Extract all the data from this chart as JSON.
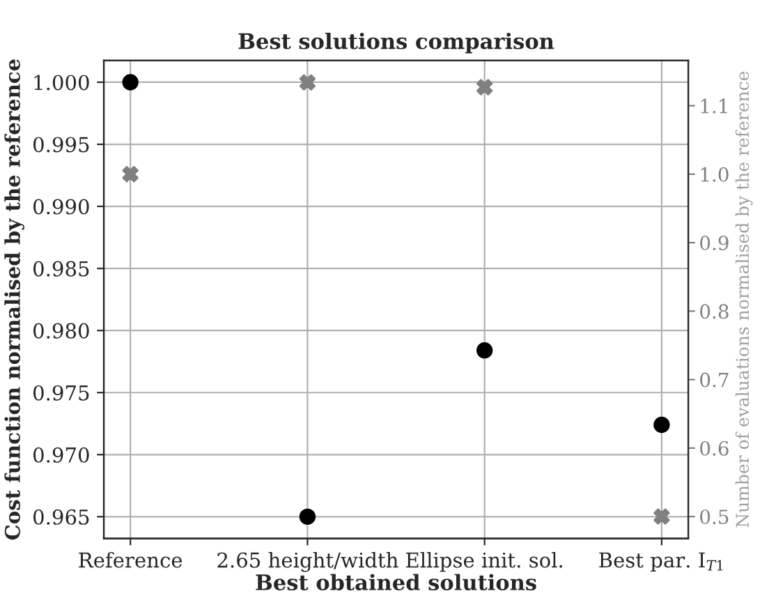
{
  "chart_data": {
    "type": "scatter",
    "title": "Best solutions comparison",
    "xlabel": "Best obtained solutions",
    "ylabel": "Cost function normalised by the reference",
    "y2label": "Number of evaluations normalised by the reference",
    "categories": [
      "Reference",
      "2.65 height/width",
      "Ellipse init. sol.",
      "Best par. I$_{T1}$"
    ],
    "series": [
      {
        "color": "#000000",
        "marker": "circle",
        "values": [
          1.0,
          0.965,
          0.9784,
          0.9724
        ]
      },
      {
        "color": "#808080",
        "marker": "cross",
        "axis": "y2",
        "values": [
          1.0,
          1.134,
          1.127,
          0.5
        ]
      }
    ],
    "ylim": [
      0.96325,
      1.00175
    ],
    "yticks": [
      {
        "value": 0.965,
        "label": "0.965"
      },
      {
        "value": 0.97,
        "label": "0.970"
      },
      {
        "value": 0.975,
        "label": "0.975"
      },
      {
        "value": 0.98,
        "label": "0.980"
      },
      {
        "value": 0.985,
        "label": "0.985"
      },
      {
        "value": 0.99,
        "label": "0.990"
      },
      {
        "value": 0.995,
        "label": "0.995"
      },
      {
        "value": 1.0,
        "label": "1.000"
      }
    ],
    "y2lim": [
      0.468,
      1.166
    ],
    "y2ticks": [
      0.5,
      0.6,
      0.7,
      0.8,
      0.9,
      {
        "value": 1.0,
        "label": "1.0"
      },
      1.1
    ],
    "grid": true,
    "legend": false
  }
}
